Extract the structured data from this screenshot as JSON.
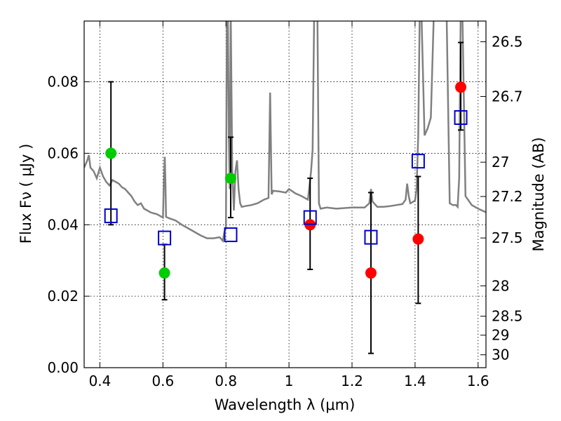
{
  "chart_data": {
    "type": "scatter",
    "xlabel": "Wavelength  λ (μm)",
    "ylabel": "Flux  Fν  ( μJy )",
    "y2label": "Magnitude (AB)",
    "xlim": [
      0.35,
      1.625
    ],
    "ylim": [
      0.0,
      0.097
    ],
    "grid": true,
    "x_ticks": [
      0.4,
      0.6,
      0.8,
      1.0,
      1.2,
      1.4,
      1.6
    ],
    "x_tick_labels": [
      "0.4",
      "0.6",
      "0.8",
      "1",
      "1.2",
      "1.4",
      "1.6"
    ],
    "y_ticks": [
      0.0,
      0.02,
      0.04,
      0.06,
      0.08
    ],
    "y_tick_labels": [
      "0.00",
      "0.02",
      "0.04",
      "0.06",
      "0.08"
    ],
    "y2_ticks": [
      {
        "label": "26.5",
        "flux": 0.0912
      },
      {
        "label": "26.7",
        "flux": 0.0759
      },
      {
        "label": "27",
        "flux": 0.0575
      },
      {
        "label": "27.2",
        "flux": 0.0479
      },
      {
        "label": "27.5",
        "flux": 0.0363
      },
      {
        "label": "28",
        "flux": 0.0229
      },
      {
        "label": "28.5",
        "flux": 0.0144
      },
      {
        "label": "29",
        "flux": 0.0091
      },
      {
        "label": "30",
        "flux": 0.0036
      }
    ],
    "model_spectrum": {
      "color": "#808080",
      "x": [
        0.35,
        0.36,
        0.365,
        0.37,
        0.38,
        0.39,
        0.4,
        0.41,
        0.42,
        0.43,
        0.44,
        0.45,
        0.46,
        0.47,
        0.48,
        0.49,
        0.5,
        0.51,
        0.52,
        0.53,
        0.54,
        0.55,
        0.56,
        0.57,
        0.58,
        0.59,
        0.6,
        0.603,
        0.606,
        0.608,
        0.61,
        0.62,
        0.64,
        0.66,
        0.68,
        0.7,
        0.72,
        0.74,
        0.76,
        0.78,
        0.79,
        0.795,
        0.8,
        0.803,
        0.806,
        0.809,
        0.812,
        0.815,
        0.82,
        0.825,
        0.83,
        0.835,
        0.84,
        0.845,
        0.85,
        0.86,
        0.88,
        0.9,
        0.92,
        0.935,
        0.94,
        0.945,
        0.95,
        0.97,
        0.99,
        1.0,
        1.02,
        1.04,
        1.06,
        1.07,
        1.075,
        1.08,
        1.083,
        1.086,
        1.09,
        1.095,
        1.1,
        1.12,
        1.15,
        1.2,
        1.24,
        1.255,
        1.26,
        1.265,
        1.28,
        1.3,
        1.32,
        1.34,
        1.36,
        1.37,
        1.375,
        1.38,
        1.385,
        1.39,
        1.4,
        1.405,
        1.41,
        1.415,
        1.42,
        1.43,
        1.44,
        1.45,
        1.46,
        1.47,
        1.48,
        1.49,
        1.5,
        1.51,
        1.52,
        1.53,
        1.535,
        1.54,
        1.545,
        1.55,
        1.56,
        1.58,
        1.6,
        1.625
      ],
      "y": [
        0.056,
        0.058,
        0.0595,
        0.056,
        0.055,
        0.053,
        0.056,
        0.0535,
        0.052,
        0.051,
        0.0525,
        0.052,
        0.0515,
        0.0505,
        0.05,
        0.049,
        0.048,
        0.0465,
        0.0455,
        0.046,
        0.0445,
        0.044,
        0.0435,
        0.0432,
        0.043,
        0.0425,
        0.042,
        0.052,
        0.059,
        0.052,
        0.0422,
        0.0418,
        0.0412,
        0.04,
        0.039,
        0.038,
        0.037,
        0.0362,
        0.0362,
        0.0365,
        0.0355,
        0.038,
        0.039,
        0.1,
        0.1,
        0.065,
        0.05,
        0.1,
        0.055,
        0.044,
        0.055,
        0.058,
        0.05,
        0.046,
        0.045,
        0.0452,
        0.0455,
        0.046,
        0.047,
        0.0475,
        0.077,
        0.0485,
        0.0495,
        0.0493,
        0.049,
        0.05,
        0.0488,
        0.048,
        0.047,
        0.055,
        0.061,
        0.1,
        0.1,
        0.1,
        0.1,
        0.046,
        0.0445,
        0.0448,
        0.0445,
        0.0448,
        0.0448,
        0.046,
        0.05,
        0.0465,
        0.045,
        0.045,
        0.0452,
        0.0455,
        0.0458,
        0.047,
        0.0515,
        0.048,
        0.046,
        0.0462,
        0.0468,
        0.05,
        0.065,
        0.1,
        0.1,
        0.065,
        0.067,
        0.07,
        0.1,
        0.1,
        0.1,
        0.1,
        0.1,
        0.046,
        0.0455,
        0.0455,
        0.045,
        0.053,
        0.1,
        0.1,
        0.048,
        0.0455,
        0.0445,
        0.0435
      ]
    },
    "series": [
      {
        "marker": "filled-circle",
        "color": "#00cc00",
        "x": [
          0.435,
          0.605,
          0.815
        ],
        "y": [
          0.06,
          0.0265,
          0.053
        ],
        "err_low": [
          0.04,
          0.019,
          0.042
        ],
        "err_high": [
          0.08,
          0.0345,
          0.0645
        ]
      },
      {
        "marker": "filled-circle",
        "color": "#ff0000",
        "x": [
          1.067,
          1.26,
          1.41,
          1.545
        ],
        "y": [
          0.04,
          0.0265,
          0.036,
          0.0785
        ],
        "err_low": [
          0.0275,
          0.004,
          0.018,
          0.0665
        ],
        "err_high": [
          0.053,
          0.049,
          0.0535,
          0.091
        ]
      },
      {
        "marker": "open-square",
        "color": "#0000cc",
        "x": [
          0.435,
          0.605,
          0.815,
          1.067,
          1.26,
          1.41,
          1.545
        ],
        "y": [
          0.0425,
          0.0363,
          0.0372,
          0.042,
          0.0365,
          0.0578,
          0.07
        ]
      }
    ]
  }
}
